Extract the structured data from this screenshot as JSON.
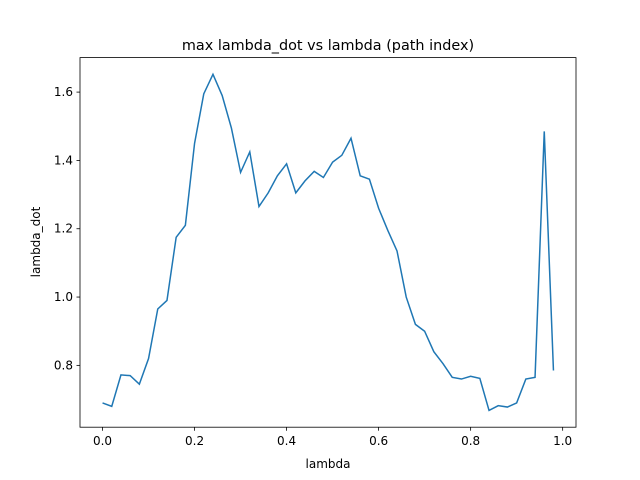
{
  "chart_data": {
    "type": "line",
    "title": "max lambda_dot vs lambda (path index)",
    "xlabel": "lambda",
    "ylabel": "lambda_dot",
    "x": [
      0.0,
      0.02,
      0.04,
      0.06,
      0.08,
      0.1,
      0.12,
      0.14,
      0.16,
      0.18,
      0.2,
      0.22,
      0.24,
      0.26,
      0.28,
      0.3,
      0.32,
      0.34,
      0.36,
      0.38,
      0.4,
      0.42,
      0.44,
      0.46,
      0.48,
      0.5,
      0.52,
      0.54,
      0.56,
      0.58,
      0.6,
      0.62,
      0.64,
      0.66,
      0.68,
      0.7,
      0.72,
      0.74,
      0.76,
      0.78,
      0.8,
      0.82,
      0.84,
      0.86,
      0.88,
      0.9,
      0.92,
      0.94,
      0.96,
      0.98
    ],
    "series": [
      {
        "name": "max lambda_dot",
        "color": "#1f77b4",
        "values": [
          0.69,
          0.68,
          0.772,
          0.77,
          0.745,
          0.82,
          0.965,
          0.99,
          1.175,
          1.21,
          1.45,
          1.595,
          1.652,
          1.59,
          1.495,
          1.365,
          1.425,
          1.265,
          1.305,
          1.355,
          1.39,
          1.305,
          1.34,
          1.368,
          1.35,
          1.395,
          1.415,
          1.465,
          1.355,
          1.345,
          1.26,
          1.195,
          1.135,
          1.0,
          0.92,
          0.9,
          0.84,
          0.805,
          0.765,
          0.76,
          0.768,
          0.762,
          0.668,
          0.682,
          0.678,
          0.69,
          0.76,
          0.765,
          1.485,
          0.785
        ]
      }
    ],
    "xlim": [
      -0.049,
      1.029
    ],
    "ylim": [
      0.619,
      1.701
    ],
    "xticks": [
      {
        "value": 0,
        "label": "0.0"
      },
      0.2,
      0.4,
      0.6,
      0.8,
      {
        "value": 1,
        "label": "1.0"
      }
    ],
    "yticks": [
      0.8,
      {
        "value": 1,
        "label": "1.0"
      },
      1.2,
      1.4,
      1.6
    ]
  }
}
